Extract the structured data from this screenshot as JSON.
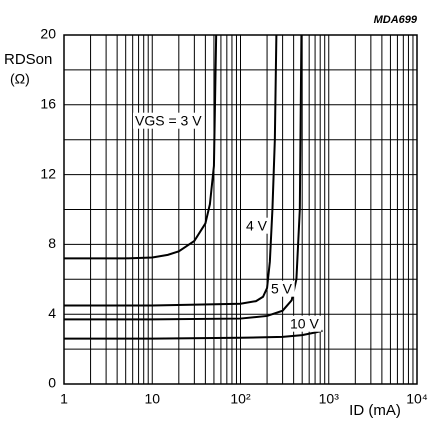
{
  "chart_data": {
    "type": "line",
    "source_label": "MDA699",
    "ylabel": "RDSon",
    "ylabel_unit": "(Ω)",
    "xlabel": "ID (mA)",
    "xscale": "log",
    "xlim": [
      1,
      10000
    ],
    "xticks": [
      1,
      10,
      {
        "value": 100,
        "label": "10²"
      },
      {
        "value": 1000,
        "label": "10³"
      },
      {
        "value": 10000,
        "label": "10⁴"
      }
    ],
    "ylim": [
      0,
      20
    ],
    "yticks": [
      0,
      4,
      8,
      12,
      16,
      20
    ],
    "yminor": [
      2,
      6,
      10,
      14,
      18
    ],
    "grid": true,
    "color": "#000000",
    "series": [
      {
        "name": "VGS = 3 V",
        "x": [
          1,
          5,
          10,
          15,
          20,
          30,
          40,
          45,
          50,
          53
        ],
        "values": [
          7.2,
          7.2,
          7.25,
          7.4,
          7.6,
          8.2,
          9.2,
          10.3,
          12.5,
          20
        ]
      },
      {
        "name": "4 V",
        "x": [
          1,
          10,
          100,
          150,
          180,
          200,
          215,
          230,
          245,
          255
        ],
        "values": [
          4.5,
          4.5,
          4.6,
          4.75,
          5,
          5.5,
          7,
          10,
          14,
          20
        ]
      },
      {
        "name": "5 V",
        "x": [
          1,
          10,
          100,
          200,
          300,
          380,
          430,
          470,
          490
        ],
        "values": [
          3.7,
          3.7,
          3.75,
          3.9,
          4.2,
          4.8,
          6,
          10,
          20
        ]
      },
      {
        "name": "10 V",
        "x": [
          1,
          10,
          100,
          300,
          500,
          700,
          850
        ],
        "values": [
          2.6,
          2.6,
          2.65,
          2.7,
          2.8,
          2.95,
          3.05
        ]
      }
    ]
  }
}
